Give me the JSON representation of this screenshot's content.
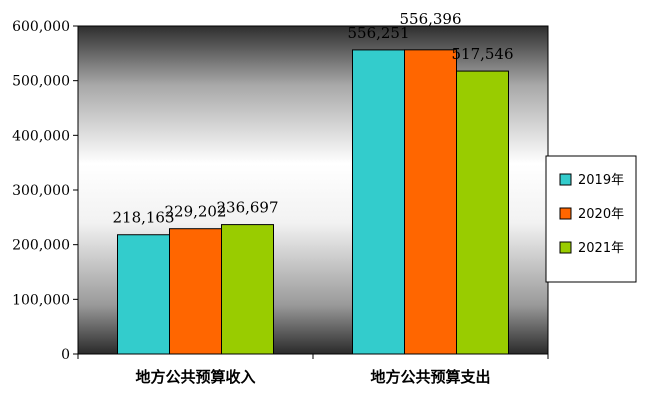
{
  "chart_data": {
    "type": "bar",
    "categories": [
      "地方公共预算收入",
      "地方公共预算支出"
    ],
    "series": [
      {
        "name": "2019年",
        "values": [
          218163,
          556251
        ],
        "labels": [
          "218,163",
          "556,251"
        ],
        "color": "#33CCCC"
      },
      {
        "name": "2020年",
        "values": [
          229202,
          556396
        ],
        "labels": [
          "229,202",
          "556,396"
        ],
        "color": "#FF6600"
      },
      {
        "name": "2021年",
        "values": [
          236697,
          517546
        ],
        "labels": [
          "236,697",
          "517,546"
        ],
        "color": "#99CC00"
      }
    ],
    "ylim": [
      0,
      600000
    ],
    "yticks": [
      0,
      100000,
      200000,
      300000,
      400000,
      500000,
      600000
    ],
    "ytick_labels": [
      "0",
      "100,000",
      "200,000",
      "300,000",
      "400,000",
      "500,000",
      "600,000"
    ],
    "legend_position": "right",
    "grid": false
  }
}
